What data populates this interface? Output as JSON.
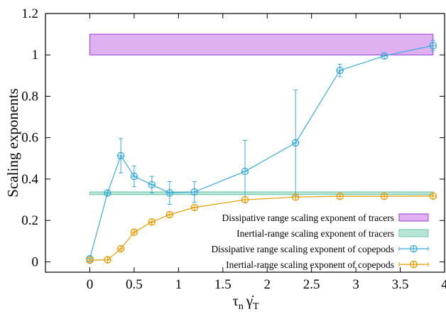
{
  "chart_data": {
    "type": "line",
    "xlabel": "τ_n γ̇_T",
    "ylabel": "Scaling exponents",
    "xlim": [
      -0.5,
      4
    ],
    "ylim": [
      -0.05,
      1.2
    ],
    "xticks": [
      "0",
      "0.5",
      "1",
      "1.5",
      "2",
      "2.5",
      "3",
      "3.5",
      "4"
    ],
    "yticks": [
      "0",
      "0.2",
      "0.4",
      "0.6",
      "0.8",
      "1",
      "1.2"
    ],
    "legend_position": "bottom-right",
    "bands": [
      {
        "name": "Dissipative range scaling exponent of tracers",
        "x_range": [
          0,
          3.87
        ],
        "y_range": [
          1.0,
          1.1
        ],
        "color": "#e0b1f0",
        "edge": "#9a3ad1"
      },
      {
        "name": "Inertial-range scaling exponent of tracers",
        "x_range": [
          0,
          3.87
        ],
        "y_range": [
          0.325,
          0.338
        ],
        "color": "#b7e5d6",
        "edge": "#6cc4ad"
      }
    ],
    "series": [
      {
        "name": "Dissipative range scaling exponent of copepods",
        "color": "#3aabdc",
        "x": [
          0.0,
          0.2,
          0.35,
          0.5,
          0.7,
          0.9,
          1.18,
          1.75,
          2.32,
          2.82,
          3.32,
          3.87
        ],
        "y": [
          0.015,
          0.333,
          0.513,
          0.413,
          0.373,
          0.333,
          0.338,
          0.437,
          0.575,
          0.925,
          0.995,
          1.045
        ],
        "err": [
          0.0,
          0.0,
          0.083,
          0.05,
          0.04,
          0.055,
          0.05,
          0.15,
          0.255,
          0.03,
          0.0,
          0.025
        ]
      },
      {
        "name": "Inertial-range scaling exponent of copepods",
        "color": "#e49c00",
        "x": [
          0.0,
          0.2,
          0.35,
          0.5,
          0.7,
          0.9,
          1.18,
          1.75,
          2.32,
          2.82,
          3.32,
          3.87
        ],
        "y": [
          0.008,
          0.01,
          0.063,
          0.143,
          0.193,
          0.228,
          0.263,
          0.3,
          0.313,
          0.317,
          0.317,
          0.318
        ],
        "err": [
          0,
          0,
          0,
          0,
          0,
          0,
          0,
          0,
          0,
          0,
          0,
          0
        ]
      }
    ]
  }
}
